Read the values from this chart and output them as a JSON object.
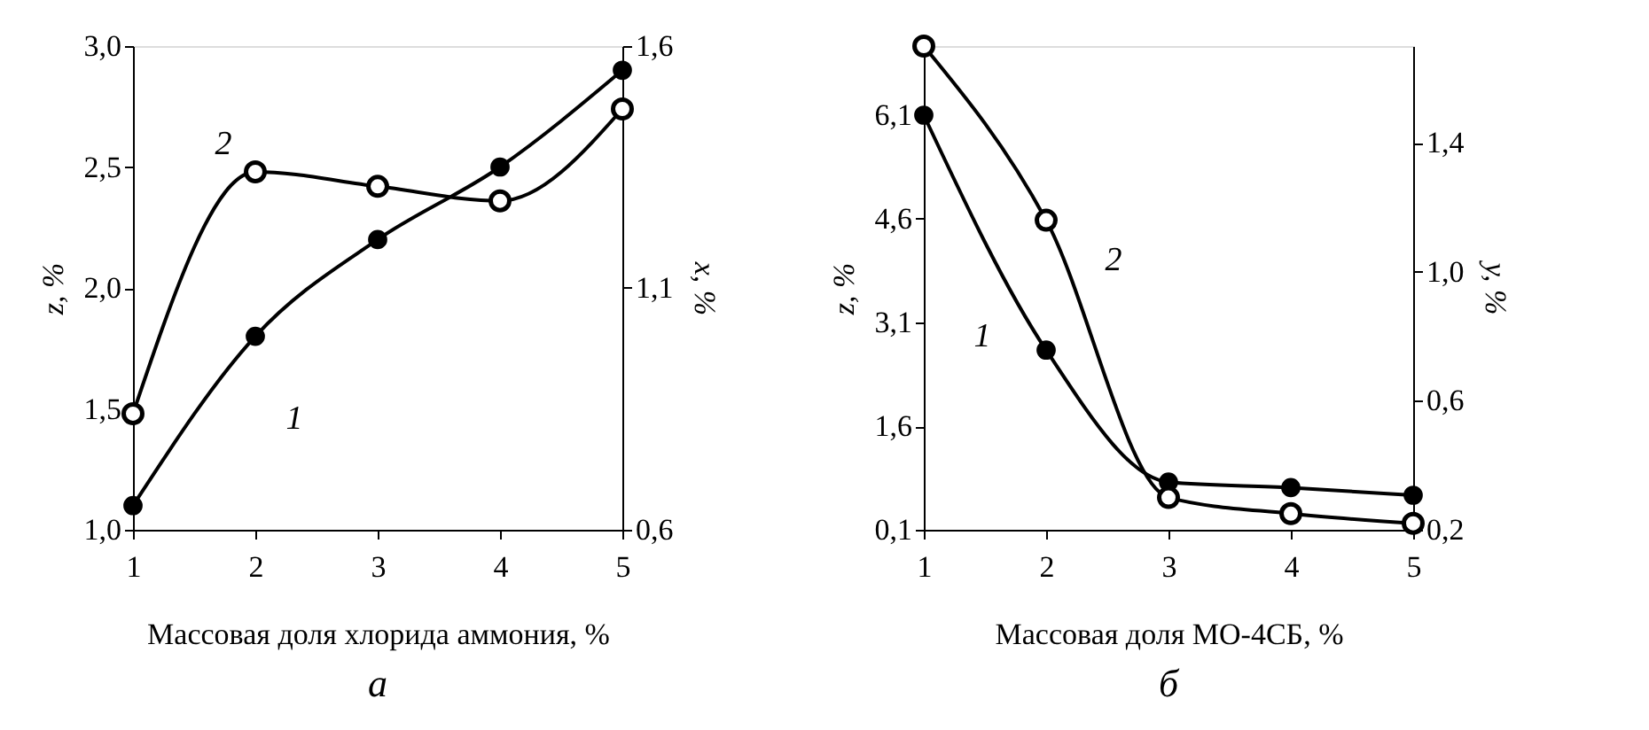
{
  "chart_data": [
    {
      "type": "line",
      "title": "а",
      "xlabel": "Массовая доля хлорида аммония, %",
      "ylabel": "z, %",
      "y2label": "x, %",
      "x": [
        1,
        2,
        3,
        4,
        5
      ],
      "xlim": [
        1,
        5
      ],
      "xticks": [
        1,
        2,
        3,
        4,
        5
      ],
      "ylim": [
        1.0,
        3.0
      ],
      "yticks": [
        {
          "value": 1.0,
          "label": "1,0"
        },
        {
          "value": 1.5,
          "label": "1,5"
        },
        {
          "value": 2.0,
          "label": "2,0"
        },
        {
          "value": 2.5,
          "label": "2,5"
        },
        {
          "value": 3.0,
          "label": "3,0"
        }
      ],
      "y2lim": [
        0.6,
        1.6
      ],
      "y2ticks": [
        {
          "value": 0.6,
          "label": "0,6"
        },
        {
          "value": 1.1,
          "label": "1,1"
        },
        {
          "value": 1.6,
          "label": "1,6"
        }
      ],
      "series": [
        {
          "color": "#000000",
          "marker": "circle",
          "values": [
            1.1,
            1.8,
            2.2,
            2.5,
            2.9
          ]
        },
        {
          "color": "#000000",
          "marker": "circle",
          "axis": "y2",
          "values": [
            0.84,
            1.34,
            1.31,
            1.28,
            1.47
          ]
        }
      ],
      "annotations": [
        "1",
        "2"
      ],
      "line_style": "solid",
      "grid": false
    },
    {
      "type": "line",
      "title": "б",
      "xlabel": "Массовая доля МО-4СБ, %",
      "ylabel": "z, %",
      "y2label": "y, %",
      "x": [
        1,
        2,
        3,
        4,
        5
      ],
      "xlim": [
        1,
        5
      ],
      "xticks": [
        1,
        2,
        3,
        4,
        5
      ],
      "ylim": [
        0.1,
        7.1
      ],
      "yticks": [
        {
          "value": 0.1,
          "label": "0,1"
        },
        {
          "value": 1.6,
          "label": "1,6"
        },
        {
          "value": 3.1,
          "label": "3,1"
        },
        {
          "value": 4.6,
          "label": "4,6"
        },
        {
          "value": 6.1,
          "label": "6,1"
        }
      ],
      "y2lim": [
        0.2,
        1.7
      ],
      "y2ticks": [
        {
          "value": 0.2,
          "label": "0,2"
        },
        {
          "value": 0.6,
          "label": "0,6"
        },
        {
          "value": 1.0,
          "label": "1,0"
        },
        {
          "value": 1.4,
          "label": "1,4"
        }
      ],
      "series": [
        {
          "color": "#000000",
          "marker": "circle",
          "values": [
            6.1,
            2.7,
            0.79,
            0.71,
            0.6
          ]
        },
        {
          "color": "#000000",
          "marker": "circle",
          "axis": "y2",
          "values": [
            1.7,
            1.16,
            0.3,
            0.25,
            0.22
          ]
        }
      ],
      "annotations": [
        "1",
        "2"
      ],
      "line_style": "solid",
      "grid": false
    }
  ]
}
